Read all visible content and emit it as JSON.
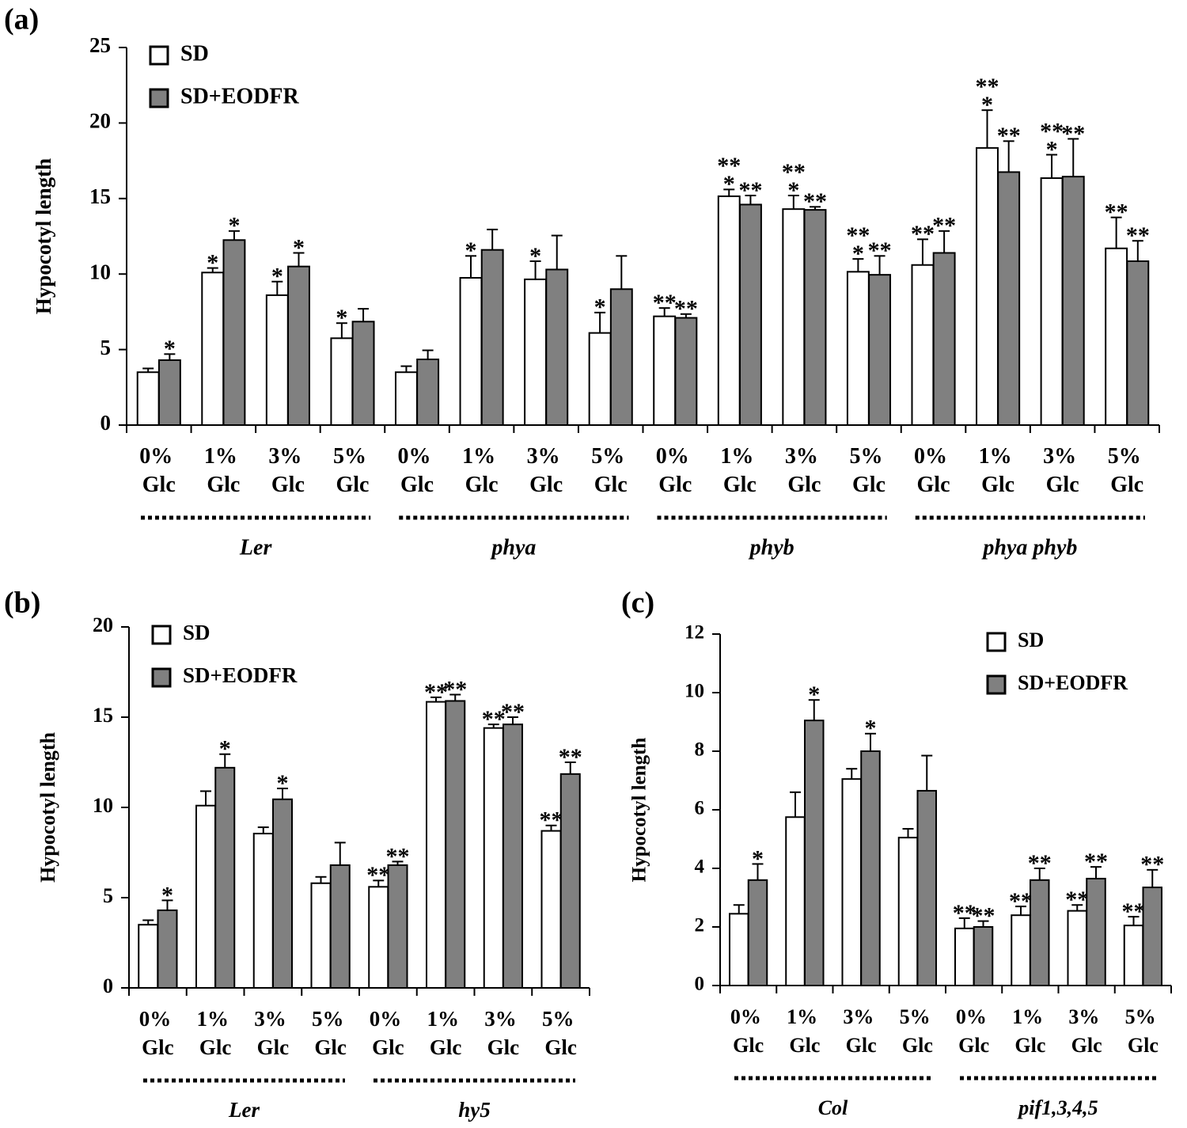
{
  "chart_data": [
    {
      "type": "bar",
      "panel_label": "(a)",
      "y_label": "Hypocotyl length",
      "categories": [
        "0% Glc",
        "1% Glc",
        "3% Glc",
        "5% Glc",
        "0% Glc",
        "1% Glc",
        "3% Glc",
        "5% Glc",
        "0% Glc",
        "1% Glc",
        "3% Glc",
        "5% Glc",
        "0% Glc",
        "1% Glc",
        "3% Glc",
        "5% Glc"
      ],
      "groups": [
        "Ler",
        "phya",
        "phyb",
        "phya phyb"
      ],
      "series": [
        {
          "name": "SD",
          "color": "#ffffff",
          "values": [
            3.5,
            10.1,
            8.6,
            5.75,
            3.5,
            9.75,
            9.65,
            6.1,
            7.2,
            15.15,
            14.3,
            10.15,
            10.6,
            18.35,
            16.35,
            11.7
          ],
          "errors": [
            0.25,
            0.3,
            0.9,
            1.0,
            0.4,
            1.45,
            1.2,
            1.35,
            0.55,
            0.45,
            0.9,
            0.85,
            1.7,
            2.5,
            1.55,
            2.05
          ],
          "stars": [
            null,
            [
              "*"
            ],
            [
              "*"
            ],
            [
              "*"
            ],
            null,
            [
              "*"
            ],
            [
              "*"
            ],
            [
              "*"
            ],
            [
              "**"
            ],
            [
              "**",
              "*"
            ],
            [
              "**",
              "*"
            ],
            [
              "**",
              "*"
            ],
            [
              "**"
            ],
            [
              "**",
              "*"
            ],
            [
              "**",
              "*"
            ],
            [
              "**"
            ]
          ]
        },
        {
          "name": "SD+EODFR",
          "color": "#808080",
          "values": [
            4.3,
            12.25,
            10.5,
            6.85,
            4.35,
            11.6,
            10.3,
            9.0,
            7.1,
            14.6,
            14.25,
            9.95,
            11.4,
            16.75,
            16.45,
            10.85
          ],
          "errors": [
            0.4,
            0.6,
            0.9,
            0.85,
            0.6,
            1.35,
            2.25,
            2.2,
            0.25,
            0.6,
            0.2,
            1.25,
            1.45,
            2.05,
            2.5,
            1.35
          ],
          "stars": [
            [
              "*"
            ],
            [
              "*"
            ],
            [
              "*"
            ],
            null,
            null,
            null,
            null,
            null,
            [
              "**"
            ],
            [
              "**"
            ],
            [
              "**"
            ],
            [
              "**"
            ],
            [
              "**"
            ],
            [
              "**"
            ],
            [
              "**"
            ],
            [
              "**"
            ]
          ]
        }
      ],
      "ylim": [
        0,
        25
      ],
      "yticks": [
        0,
        5,
        10,
        15,
        20,
        25
      ],
      "legend": "upper left",
      "grid": false
    },
    {
      "type": "bar",
      "panel_label": "(b)",
      "y_label": "Hypocotyl length",
      "categories": [
        "0% Glc",
        "1% Glc",
        "3% Glc",
        "5% Glc",
        "0% Glc",
        "1% Glc",
        "3% Glc",
        "5% Glc"
      ],
      "groups": [
        "Ler",
        "hy5"
      ],
      "series": [
        {
          "name": "SD",
          "color": "#ffffff",
          "values": [
            3.5,
            10.1,
            8.55,
            5.8,
            5.6,
            15.85,
            14.4,
            8.7
          ],
          "errors": [
            0.25,
            0.8,
            0.35,
            0.35,
            0.35,
            0.25,
            0.2,
            0.3
          ],
          "stars": [
            null,
            null,
            null,
            null,
            [
              "**"
            ],
            [
              "**"
            ],
            [
              "**"
            ],
            [
              "**"
            ]
          ]
        },
        {
          "name": "SD+EODFR",
          "color": "#808080",
          "values": [
            4.3,
            12.2,
            10.45,
            6.8,
            6.8,
            15.9,
            14.6,
            11.85
          ],
          "errors": [
            0.55,
            0.75,
            0.6,
            1.25,
            0.2,
            0.35,
            0.4,
            0.65
          ],
          "stars": [
            [
              "*"
            ],
            [
              "*"
            ],
            [
              "*"
            ],
            null,
            [
              "**"
            ],
            [
              "**"
            ],
            [
              "**"
            ],
            [
              "**"
            ]
          ]
        }
      ],
      "ylim": [
        0,
        20
      ],
      "yticks": [
        0,
        5,
        10,
        15,
        20
      ],
      "legend": "upper left",
      "grid": false
    },
    {
      "type": "bar",
      "panel_label": "(c)",
      "y_label": "Hypocotyl length",
      "categories": [
        "0% Glc",
        "1% Glc",
        "3% Glc",
        "5% Glc",
        "0% Glc",
        "1% Glc",
        "3% Glc",
        "5% Glc"
      ],
      "groups": [
        "Col",
        "pif1,3,4,5"
      ],
      "series": [
        {
          "name": "SD",
          "color": "#ffffff",
          "values": [
            2.45,
            5.75,
            7.05,
            5.05,
            1.95,
            2.4,
            2.55,
            2.05
          ],
          "errors": [
            0.3,
            0.85,
            0.35,
            0.3,
            0.35,
            0.3,
            0.2,
            0.3
          ],
          "stars": [
            null,
            null,
            null,
            null,
            [
              "**"
            ],
            [
              "**"
            ],
            [
              "**"
            ],
            [
              "**"
            ]
          ]
        },
        {
          "name": "SD+EODFR",
          "color": "#808080",
          "values": [
            3.6,
            9.05,
            8.0,
            6.65,
            2.0,
            3.6,
            3.65,
            3.35
          ],
          "errors": [
            0.55,
            0.7,
            0.6,
            1.2,
            0.2,
            0.4,
            0.4,
            0.6
          ],
          "stars": [
            [
              "*"
            ],
            [
              "*"
            ],
            [
              "*"
            ],
            null,
            [
              "**"
            ],
            [
              "**"
            ],
            [
              "**"
            ],
            [
              "**"
            ]
          ]
        }
      ],
      "ylim": [
        0,
        12
      ],
      "yticks": [
        0,
        2,
        4,
        6,
        8,
        10,
        12
      ],
      "legend": "upper right",
      "grid": false
    }
  ]
}
